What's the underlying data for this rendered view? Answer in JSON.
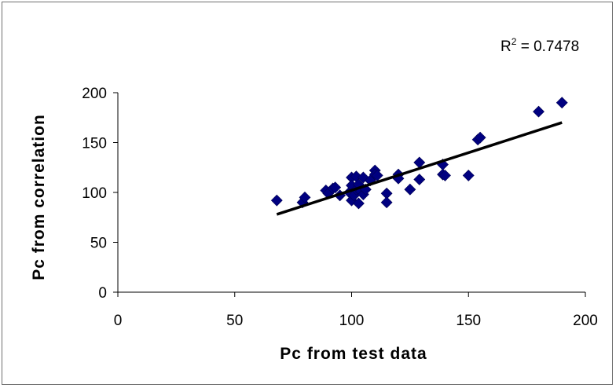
{
  "chart_data": {
    "type": "scatter",
    "title": "",
    "xlabel": "Pc from test data",
    "ylabel": "Pc from correlation",
    "xlim": [
      0,
      200
    ],
    "ylim": [
      0,
      200
    ],
    "xticks": [
      "0",
      "50",
      "100",
      "150",
      "200"
    ],
    "yticks": [
      "0",
      "50",
      "100",
      "150",
      "200"
    ],
    "grid": false,
    "legend": "none",
    "marker_color": "#000080",
    "trendline_color": "#000000",
    "annotation": {
      "r2_label": "R",
      "r2_sup": "2",
      "r2_value": " = 0.7478"
    },
    "trendline": {
      "x": [
        68,
        190
      ],
      "y": [
        78,
        170
      ]
    },
    "points": [
      {
        "x": 68,
        "y": 92
      },
      {
        "x": 79,
        "y": 90
      },
      {
        "x": 80,
        "y": 95
      },
      {
        "x": 89,
        "y": 102
      },
      {
        "x": 90,
        "y": 99
      },
      {
        "x": 92,
        "y": 104
      },
      {
        "x": 93,
        "y": 105
      },
      {
        "x": 95,
        "y": 97
      },
      {
        "x": 99,
        "y": 100
      },
      {
        "x": 100,
        "y": 115
      },
      {
        "x": 100,
        "y": 107
      },
      {
        "x": 100,
        "y": 92
      },
      {
        "x": 101,
        "y": 97
      },
      {
        "x": 102,
        "y": 116
      },
      {
        "x": 102,
        "y": 103
      },
      {
        "x": 103,
        "y": 108
      },
      {
        "x": 103,
        "y": 89
      },
      {
        "x": 104,
        "y": 101
      },
      {
        "x": 105,
        "y": 115
      },
      {
        "x": 105,
        "y": 98
      },
      {
        "x": 106,
        "y": 103
      },
      {
        "x": 108,
        "y": 112
      },
      {
        "x": 110,
        "y": 122
      },
      {
        "x": 110,
        "y": 118
      },
      {
        "x": 111,
        "y": 117
      },
      {
        "x": 115,
        "y": 99
      },
      {
        "x": 115,
        "y": 90
      },
      {
        "x": 120,
        "y": 118
      },
      {
        "x": 120,
        "y": 114
      },
      {
        "x": 125,
        "y": 103
      },
      {
        "x": 129,
        "y": 130
      },
      {
        "x": 129,
        "y": 113
      },
      {
        "x": 139,
        "y": 128
      },
      {
        "x": 139,
        "y": 118
      },
      {
        "x": 140,
        "y": 117
      },
      {
        "x": 150,
        "y": 117
      },
      {
        "x": 154,
        "y": 153
      },
      {
        "x": 155,
        "y": 155
      },
      {
        "x": 180,
        "y": 181
      },
      {
        "x": 190,
        "y": 190
      }
    ]
  }
}
